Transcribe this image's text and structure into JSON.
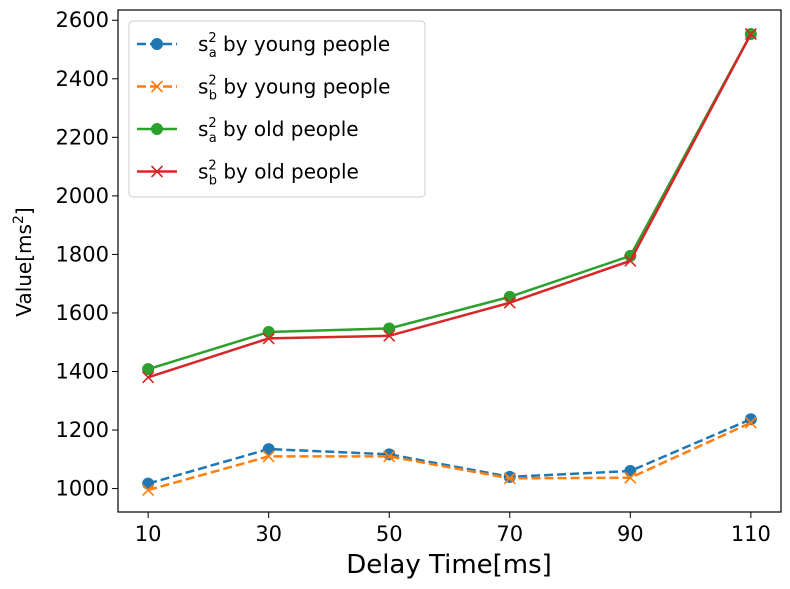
{
  "chart_data": {
    "type": "line",
    "xlabel": "Delay Time[ms]",
    "ylabel_parts": {
      "base": "Value[ms",
      "sup": "2",
      "close": "]"
    },
    "x": [
      10,
      30,
      50,
      70,
      90,
      110
    ],
    "xticks": [
      "10",
      "30",
      "50",
      "70",
      "90",
      "110"
    ],
    "yticks": [
      "1000",
      "1200",
      "1400",
      "1600",
      "1800",
      "2000",
      "2200",
      "2400",
      "2600"
    ],
    "xlim": [
      5,
      115
    ],
    "ylim": [
      920,
      2635
    ],
    "grid": false,
    "legend_position": "upper-left",
    "series": [
      {
        "legend": {
          "s": "s",
          "sub": "a",
          "sup": "2",
          "rest": " by young people"
        },
        "values": [
          1017,
          1135,
          1117,
          1040,
          1060,
          1237
        ],
        "color": "#1f77b4",
        "linestyle": "dashed",
        "marker": "circle"
      },
      {
        "legend": {
          "s": "s",
          "sub": "b",
          "sup": "2",
          "rest": " by young people"
        },
        "values": [
          995,
          1110,
          1110,
          1035,
          1037,
          1225
        ],
        "color": "#ff7f0e",
        "linestyle": "dashed",
        "marker": "x"
      },
      {
        "legend": {
          "s": "s",
          "sub": "a",
          "sup": "2",
          "rest": " by old people"
        },
        "values": [
          1408,
          1535,
          1547,
          1655,
          1795,
          2553
        ],
        "color": "#2ca02c",
        "linestyle": "solid",
        "marker": "circle"
      },
      {
        "legend": {
          "s": "s",
          "sub": "b",
          "sup": "2",
          "rest": " by old people"
        },
        "values": [
          1380,
          1513,
          1522,
          1635,
          1778,
          2553
        ],
        "color": "#d62728",
        "linestyle": "solid",
        "marker": "x"
      }
    ]
  }
}
